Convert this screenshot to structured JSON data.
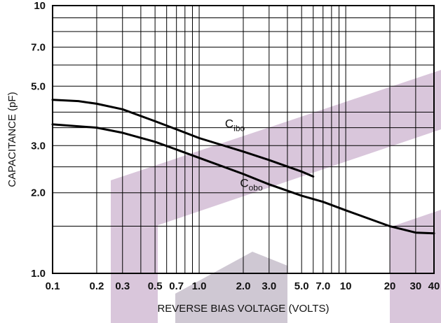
{
  "chart_data": {
    "type": "line",
    "xscale": "log",
    "yscale": "log",
    "xlim": [
      0.1,
      40
    ],
    "ylim": [
      1.0,
      10
    ],
    "xlabel": "REVERSE BIAS VOLTAGE (VOLTS)",
    "ylabel": "CAPACITANCE (pF)",
    "grid": true,
    "x_tick_labels": [
      "0.1",
      "0.2",
      "0.3",
      "0.5",
      "0.7",
      "1.0",
      "2.0",
      "3.0",
      "5.0",
      "7.0",
      "10",
      "20",
      "30",
      "40"
    ],
    "y_tick_labels": [
      "1.0",
      "2.0",
      "3.0",
      "5.0",
      "7.0",
      "10"
    ],
    "series": [
      {
        "name": "C",
        "name_subscript": "ibo",
        "color": "#000000",
        "x": [
          0.1,
          0.15,
          0.2,
          0.3,
          0.5,
          0.7,
          1.0,
          2.0,
          3.0,
          5.0,
          6.0
        ],
        "y": [
          4.45,
          4.4,
          4.3,
          4.1,
          3.7,
          3.45,
          3.2,
          2.85,
          2.65,
          2.4,
          2.3
        ]
      },
      {
        "name": "C",
        "name_subscript": "obo",
        "color": "#000000",
        "x": [
          0.1,
          0.2,
          0.3,
          0.5,
          0.7,
          1.0,
          2.0,
          3.0,
          5.0,
          7.0,
          10,
          20,
          30,
          40
        ],
        "y": [
          3.6,
          3.5,
          3.35,
          3.1,
          2.9,
          2.7,
          2.35,
          2.15,
          1.95,
          1.85,
          1.72,
          1.5,
          1.42,
          1.41
        ]
      }
    ],
    "watermark_color": "#d9c6db"
  }
}
